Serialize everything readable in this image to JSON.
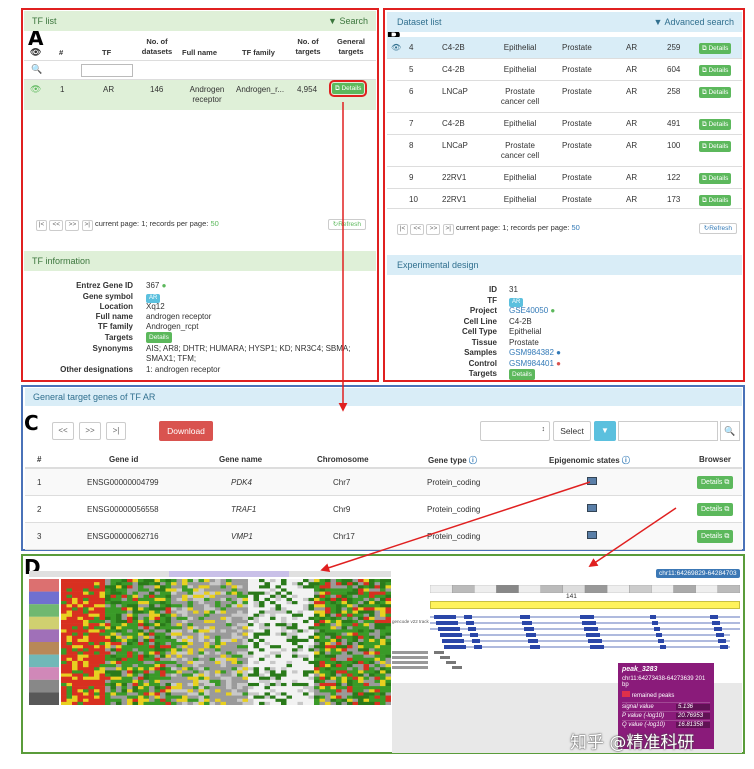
{
  "labels": {
    "a": "A",
    "b": "B",
    "c": "C",
    "d": "D"
  },
  "colors": {
    "red": "#e02020",
    "blue": "#4a72b8",
    "green": "#5a9c3a"
  },
  "tf_list": {
    "title": "TF list",
    "search": "Search",
    "headers": [
      "#",
      "TF",
      "No. of datasets",
      "Full name",
      "TF family",
      "No. of targets",
      "General targets"
    ],
    "row": {
      "num": "1",
      "tf": "AR",
      "datasets": "146",
      "full_name": "Androgen receptor",
      "family": "Androgen_r...",
      "targets": "4,954",
      "details": "Details"
    },
    "pager_buttons": [
      "|<",
      "<<",
      ">>",
      ">|"
    ],
    "pager_text": "current page: 1; records per page: ",
    "pager_num": "50",
    "refresh": "Refresh"
  },
  "tf_info": {
    "title": "TF information",
    "fields": [
      {
        "label": "Entrez Gene ID",
        "value": "367"
      },
      {
        "label": "Gene symbol",
        "value": "AR"
      },
      {
        "label": "Location",
        "value": "Xq12"
      },
      {
        "label": "Full name",
        "value": "androgen receptor"
      },
      {
        "label": "TF family",
        "value": "Androgen_rcpt"
      },
      {
        "label": "Targets",
        "value": "Details"
      },
      {
        "label": "Synonyms",
        "value": "AIS; AR8; DHTR; HUMARA; HYSP1; KD; NR3C4; SBMA; SMAX1; TFM;"
      },
      {
        "label": "Other designations",
        "value": "1: androgen receptor"
      }
    ]
  },
  "dataset_list": {
    "title": "Dataset list",
    "adv_search": "Advanced search",
    "rows": [
      {
        "n": "4",
        "cell": "C4-2B",
        "type": "Epithelial",
        "tissue": "Prostate",
        "tf": "AR",
        "count": "259"
      },
      {
        "n": "5",
        "cell": "C4-2B",
        "type": "Epithelial",
        "tissue": "Prostate",
        "tf": "AR",
        "count": "604"
      },
      {
        "n": "6",
        "cell": "LNCaP",
        "type": "Prostate cancer cell",
        "tissue": "Prostate",
        "tf": "AR",
        "count": "258"
      },
      {
        "n": "7",
        "cell": "C4-2B",
        "type": "Epithelial",
        "tissue": "Prostate",
        "tf": "AR",
        "count": "491"
      },
      {
        "n": "8",
        "cell": "LNCaP",
        "type": "Prostate cancer cell",
        "tissue": "Prostate",
        "tf": "AR",
        "count": "100"
      },
      {
        "n": "9",
        "cell": "22RV1",
        "type": "Epithelial",
        "tissue": "Prostate",
        "tf": "AR",
        "count": "122"
      },
      {
        "n": "10",
        "cell": "22RV1",
        "type": "Epithelial",
        "tissue": "Prostate",
        "tf": "AR",
        "count": "173"
      }
    ],
    "details": "Details",
    "pager_text": "current page: 1; records per page: ",
    "pager_num": "50",
    "refresh": "Refresh"
  },
  "exp_design": {
    "title": "Experimental design",
    "fields": [
      {
        "label": "ID",
        "value": "31"
      },
      {
        "label": "TF",
        "value": "AR"
      },
      {
        "label": "Project",
        "value": "GSE40050"
      },
      {
        "label": "Cell Line",
        "value": "C4-2B"
      },
      {
        "label": "Cell Type",
        "value": "Epithelial"
      },
      {
        "label": "Tissue",
        "value": "Prostate"
      },
      {
        "label": "Samples",
        "value": "GSM984382"
      },
      {
        "label": "Control",
        "value": "GSM984401"
      },
      {
        "label": "Targets",
        "value": "Details"
      }
    ]
  },
  "general_targets": {
    "title": "General target genes of TF AR",
    "pager_buttons": [
      "<<",
      ">>",
      ">|"
    ],
    "download": "Download",
    "select": "Select",
    "headers": [
      "#",
      "Gene id",
      "Gene name",
      "Chromosome",
      "Gene type",
      "Epigenomic states",
      "Browser"
    ],
    "rows": [
      {
        "n": "1",
        "id": "ENSG00000004799",
        "name": "PDK4",
        "chr": "Chr7",
        "type": "Protein_coding"
      },
      {
        "n": "2",
        "id": "ENSG00000056558",
        "name": "TRAF1",
        "chr": "Chr9",
        "type": "Protein_coding"
      },
      {
        "n": "3",
        "id": "ENSG00000062716",
        "name": "VMP1",
        "chr": "Chr17",
        "type": "Protein_coding"
      }
    ],
    "details": "Details"
  },
  "browser": {
    "coord": "chr11:64269829-64284703",
    "peak_title": "peak_3283",
    "peak_coord": "chr11:64273438-64273639",
    "peak_len": "201 bp",
    "peak_label": "remained peaks",
    "rows": [
      {
        "k": "signal value",
        "v": "5.136"
      },
      {
        "k": "P value (-log10)",
        "v": "20.76953"
      },
      {
        "k": "Q value (-log10)",
        "v": "16.81358"
      }
    ],
    "ruler": "141",
    "track_label": "gencode v22 track"
  },
  "watermark": "知乎 @精准科研"
}
